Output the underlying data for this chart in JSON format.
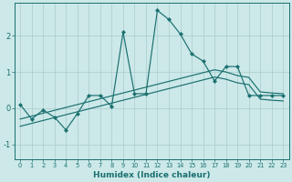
{
  "xlabel": "Humidex (Indice chaleur)",
  "xlim": [
    -0.5,
    23.5
  ],
  "ylim": [
    -1.4,
    2.9
  ],
  "yticks": [
    -1,
    0,
    1,
    2
  ],
  "xticks": [
    0,
    1,
    2,
    3,
    4,
    5,
    6,
    7,
    8,
    9,
    10,
    11,
    12,
    13,
    14,
    15,
    16,
    17,
    18,
    19,
    20,
    21,
    22,
    23
  ],
  "bg_color": "#cce8e8",
  "grid_color": "#aacccc",
  "line_color": "#1a7070",
  "curve1_y": [
    0.1,
    -0.3,
    -0.05,
    -0.25,
    -0.6,
    -0.15,
    0.35,
    0.35,
    0.05,
    2.1,
    0.4,
    0.4,
    2.7,
    2.45,
    2.05,
    1.5,
    1.3,
    0.75,
    1.15,
    1.15,
    0.35,
    0.35,
    0.35,
    0.35
  ],
  "curve2_y": [
    -0.3,
    -0.22,
    -0.14,
    -0.06,
    0.02,
    0.1,
    0.18,
    0.26,
    0.34,
    0.42,
    0.5,
    0.58,
    0.66,
    0.74,
    0.82,
    0.9,
    0.98,
    1.06,
    1.0,
    0.9,
    0.85,
    0.45,
    0.42,
    0.4
  ],
  "curve3_y": [
    -0.5,
    -0.42,
    -0.34,
    -0.26,
    -0.18,
    -0.1,
    -0.02,
    0.06,
    0.14,
    0.22,
    0.3,
    0.38,
    0.46,
    0.54,
    0.62,
    0.7,
    0.78,
    0.86,
    0.8,
    0.7,
    0.65,
    0.25,
    0.22,
    0.2
  ]
}
